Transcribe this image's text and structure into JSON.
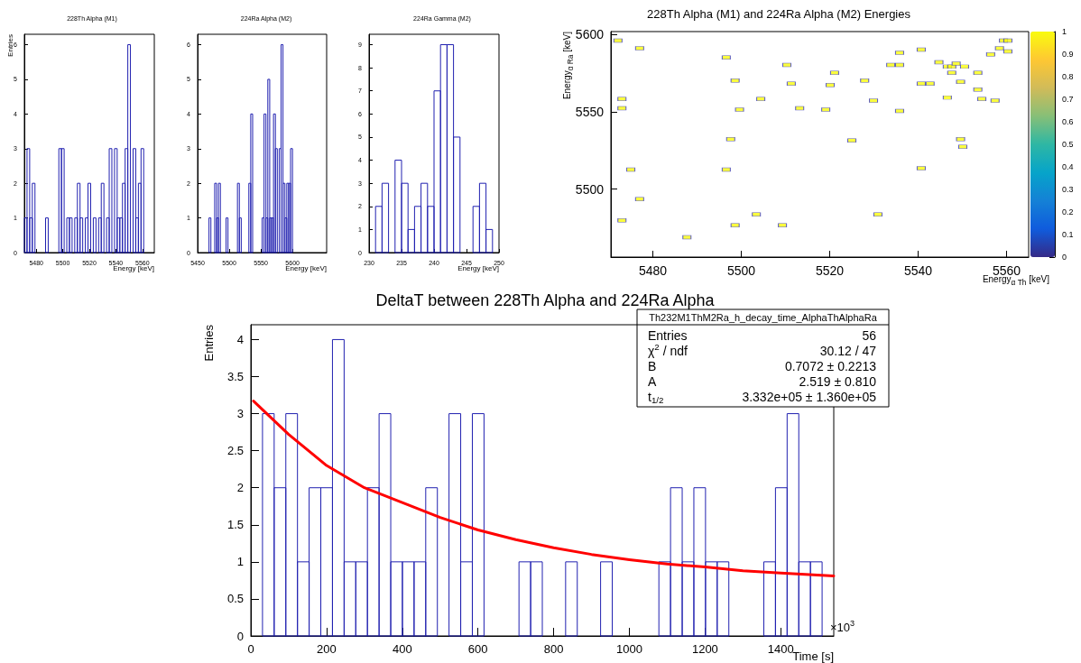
{
  "chart_data": [
    {
      "type": "histogram",
      "title": "228Th Alpha (M1)",
      "xlabel": "Energy [keV]",
      "ylabel": "Entries",
      "bins": [
        5471,
        5473,
        5475,
        5477,
        5479,
        5481,
        5483,
        5485,
        5487,
        5489,
        5491,
        5493,
        5495,
        5497,
        5499,
        5501,
        5503,
        5505,
        5507,
        5509,
        5511,
        5513,
        5515,
        5517,
        5519,
        5521,
        5523,
        5525,
        5527,
        5529,
        5531,
        5533,
        5535,
        5537,
        5539,
        5541,
        5543,
        5545,
        5547,
        5549,
        5551,
        5553,
        5555,
        5557,
        5559,
        5561,
        5563,
        5565,
        5567,
        5569
      ],
      "values": [
        1,
        3,
        1,
        2,
        0,
        0,
        0,
        0,
        1,
        0,
        0,
        0,
        0,
        3,
        3,
        0,
        1,
        1,
        0,
        1,
        2,
        1,
        0,
        1,
        2,
        0,
        1,
        0,
        1,
        2,
        0,
        1,
        3,
        0,
        3,
        1,
        1,
        2,
        3,
        6,
        0,
        3,
        1,
        2,
        3,
        0,
        0,
        0,
        0
      ],
      "color": "#2020b0",
      "xlim": [
        5471,
        5569
      ],
      "xticks": [
        5480,
        5500,
        5520,
        5540,
        5560
      ],
      "ylim": [
        0,
        6.3
      ],
      "yticks": [
        0,
        1,
        2,
        3,
        4,
        5,
        6
      ]
    },
    {
      "type": "histogram",
      "title": "224Ra Alpha (M2)",
      "xlabel": "Energy [keV]",
      "bins": [
        5450,
        5453,
        5456,
        5459,
        5462,
        5465,
        5468,
        5471,
        5474,
        5477,
        5480,
        5483,
        5486,
        5489,
        5492,
        5495,
        5498,
        5501,
        5504,
        5507,
        5510,
        5513,
        5516,
        5519,
        5522,
        5525,
        5528,
        5531,
        5534,
        5537,
        5540,
        5543,
        5546,
        5549,
        5552,
        5555,
        5558,
        5561,
        5564,
        5567,
        5570,
        5573,
        5576,
        5579,
        5582,
        5585,
        5588,
        5591,
        5594,
        5597,
        5600,
        5603,
        5606,
        5609,
        5612,
        5615,
        5618,
        5621,
        5624,
        5627,
        5630,
        5633,
        5636,
        5639,
        5642,
        5645,
        5648,
        5651,
        5654
      ],
      "values": [
        0,
        0,
        0,
        0,
        0,
        0,
        1,
        0,
        0,
        2,
        1,
        2,
        0,
        0,
        0,
        1,
        0,
        0,
        0,
        0,
        0,
        2,
        1,
        0,
        0,
        0,
        0,
        2,
        4,
        0,
        0,
        0,
        0,
        0,
        1,
        4,
        1,
        5,
        1,
        1,
        4,
        3,
        0,
        3,
        6,
        2,
        1,
        2,
        2,
        3,
        0,
        0,
        0,
        0,
        0,
        0,
        0,
        0,
        0,
        0,
        0,
        0,
        0,
        0,
        0,
        0,
        0,
        0
      ],
      "color": "#2020b0",
      "xlim": [
        5450,
        5654
      ],
      "xticks": [
        5450,
        5500,
        5550,
        5600
      ],
      "ylim": [
        0,
        6.3
      ],
      "yticks": [
        0,
        1,
        2,
        3,
        4,
        5,
        6
      ]
    },
    {
      "type": "histogram",
      "title": "224Ra Gamma (M2)",
      "xlabel": "Energy [keV]",
      "bins": [
        230,
        231,
        232,
        233,
        234,
        235,
        236,
        237,
        238,
        239,
        240,
        241,
        242,
        243,
        244,
        245,
        246,
        247,
        248,
        249,
        250
      ],
      "values": [
        0,
        2,
        3,
        0,
        4,
        3,
        1,
        2,
        3,
        2,
        7,
        9,
        9,
        5,
        0,
        0,
        2,
        3,
        1,
        0
      ],
      "color": "#2020b0",
      "xlim": [
        230,
        250
      ],
      "xticks": [
        230,
        235,
        240,
        245,
        250
      ],
      "ylim": [
        0,
        9.45
      ],
      "yticks": [
        0,
        1,
        2,
        3,
        4,
        5,
        6,
        7,
        8,
        9
      ]
    },
    {
      "type": "scatter",
      "title": "228Th Alpha (M1) and 224Ra Alpha (M2) Energies",
      "xlabel": "Energy$_{α Th}$ [keV]",
      "ylabel": "Energy$_{α Ra}$ [keV]",
      "x": [
        5472.1,
        5473.0,
        5473.0,
        5473.0,
        5475.0,
        5477.0,
        5477.0,
        5487.7,
        5496.6,
        5496.6,
        5497.6,
        5498.6,
        5498.6,
        5499.6,
        5504.4,
        5503.4,
        5510.3,
        5509.3,
        5511.3,
        5513.2,
        5519.1,
        5520.1,
        5521.1,
        5525.0,
        5527.9,
        5529.9,
        5530.9,
        5533.8,
        5535.8,
        5535.8,
        5535.8,
        5540.7,
        5540.7,
        5540.7,
        5542.7,
        5544.7,
        5546.6,
        5547.6,
        5546.6,
        5547.6,
        5548.6,
        5549.6,
        5549.6,
        5550.1,
        5550.5,
        5553.5,
        5553.5,
        5554.4,
        5556.4,
        5557.4,
        5558.4,
        5559.3,
        5560.3,
        5560.3
      ],
      "values": [
        5596.2,
        5558.4,
        5552.4,
        5479.8,
        5512.6,
        5591.2,
        5493.5,
        5468.8,
        5585.2,
        5512.6,
        5532.4,
        5570.3,
        5476.6,
        5551.5,
        5558.4,
        5483.6,
        5580.4,
        5476.6,
        5568.3,
        5552.4,
        5551.5,
        5567.4,
        5575.3,
        5531.5,
        5570.3,
        5557.3,
        5483.6,
        5580.4,
        5588.3,
        5580.4,
        5550.6,
        5590.3,
        5568.3,
        5513.5,
        5568.3,
        5582.2,
        5579.3,
        5579.3,
        5559.3,
        5575.3,
        5581.3,
        5569.4,
        5532.4,
        5527.4,
        5579.3,
        5575.3,
        5564.5,
        5558.4,
        5587.2,
        5557.3,
        5591.2,
        5596.2,
        5596.2,
        5589.2
      ],
      "cvalues": [
        1,
        1,
        1,
        1,
        1,
        1,
        1,
        1,
        1,
        1,
        1,
        1,
        1,
        1,
        1,
        1,
        1,
        1,
        1,
        1,
        1,
        1,
        1,
        1,
        1,
        1,
        1,
        1,
        1,
        1,
        1,
        1,
        1,
        1,
        1,
        1,
        1,
        1,
        1,
        1,
        1,
        1,
        1,
        1,
        1,
        1,
        1,
        1,
        1,
        1,
        1,
        1,
        1,
        1
      ],
      "marker": "square",
      "clim": [
        0,
        1
      ],
      "cticks": [
        0,
        0.1,
        0.2,
        0.3,
        0.4,
        0.5,
        0.6,
        0.7,
        0.8,
        0.9,
        1
      ],
      "xlim": [
        5470.5,
        5565
      ],
      "xticks": [
        5480,
        5500,
        5520,
        5540,
        5560
      ],
      "ylim": [
        5456,
        5602
      ],
      "yticks": [
        5500,
        5550,
        5600
      ]
    },
    {
      "type": "histogram",
      "title": "DeltaT between 228Th Alpha and 224Ra Alpha",
      "xlabel": "Time [s]",
      "ylabel": "Entries",
      "bins": [
        0,
        30.8,
        61.6,
        92.4,
        123.2,
        154,
        184.8,
        215.6,
        246.4,
        277.2,
        308,
        338.8,
        369.6,
        400.4,
        431.2,
        462,
        492.8,
        523.6,
        554.4,
        585.2,
        616,
        646.8,
        677.6,
        708.4,
        739.2,
        770,
        800.8,
        831.6,
        862.4,
        893.2,
        924,
        954.8,
        985.6,
        1016.4,
        1047.2,
        1078,
        1108.8,
        1139.6,
        1170.4,
        1201.2,
        1232,
        1262.8,
        1293.6,
        1324.4,
        1355.2,
        1386,
        1416.8,
        1447.6,
        1478.4,
        1509.2,
        1540
      ],
      "series": [
        {
          "color": "#2020b0",
          "values": [
            0,
            3,
            2,
            3,
            1,
            2,
            2,
            4,
            1,
            1,
            2,
            3,
            1,
            1,
            1,
            2,
            0,
            3,
            1,
            3,
            0,
            0,
            0,
            1,
            1,
            0,
            0,
            1,
            0,
            0,
            1,
            0,
            0,
            0,
            0,
            1,
            2,
            1,
            2,
            1,
            1,
            0,
            0,
            0,
            1,
            2,
            3,
            1,
            1,
            0
          ]
        },
        {
          "type": "line",
          "color": "#ff0000",
          "x": [
            7,
            100,
            200,
            300,
            400,
            500,
            600,
            700,
            800,
            900,
            1000,
            1100,
            1200,
            1300,
            1400,
            1540
          ],
          "values": [
            3.17,
            2.72,
            2.3,
            2.0,
            1.8,
            1.6,
            1.43,
            1.3,
            1.19,
            1.1,
            1.03,
            0.97,
            0.93,
            0.88,
            0.85,
            0.81
          ]
        }
      ],
      "xlim": [
        0,
        1540
      ],
      "xticks": [
        0,
        200,
        400,
        600,
        800,
        1000,
        1200,
        1400
      ],
      "ylim": [
        0,
        4.2
      ],
      "yticks": [
        0,
        0.5,
        1,
        1.5,
        2,
        2.5,
        3,
        3.5,
        4
      ],
      "annotations": [
        "×10$^{3}$",
        "Th232M1ThM2Ra_h_decay_time_AlphaThAlphaRa",
        "Entries",
        "56",
        "χ$^{2}$ / ndf",
        "30.12 / 47",
        "B",
        "0.7072 ± 0.2213",
        "A",
        "2.519 ± 0.810",
        "t$_{1/2}$",
        "3.332e+05 ± 1.360e+05"
      ]
    }
  ]
}
